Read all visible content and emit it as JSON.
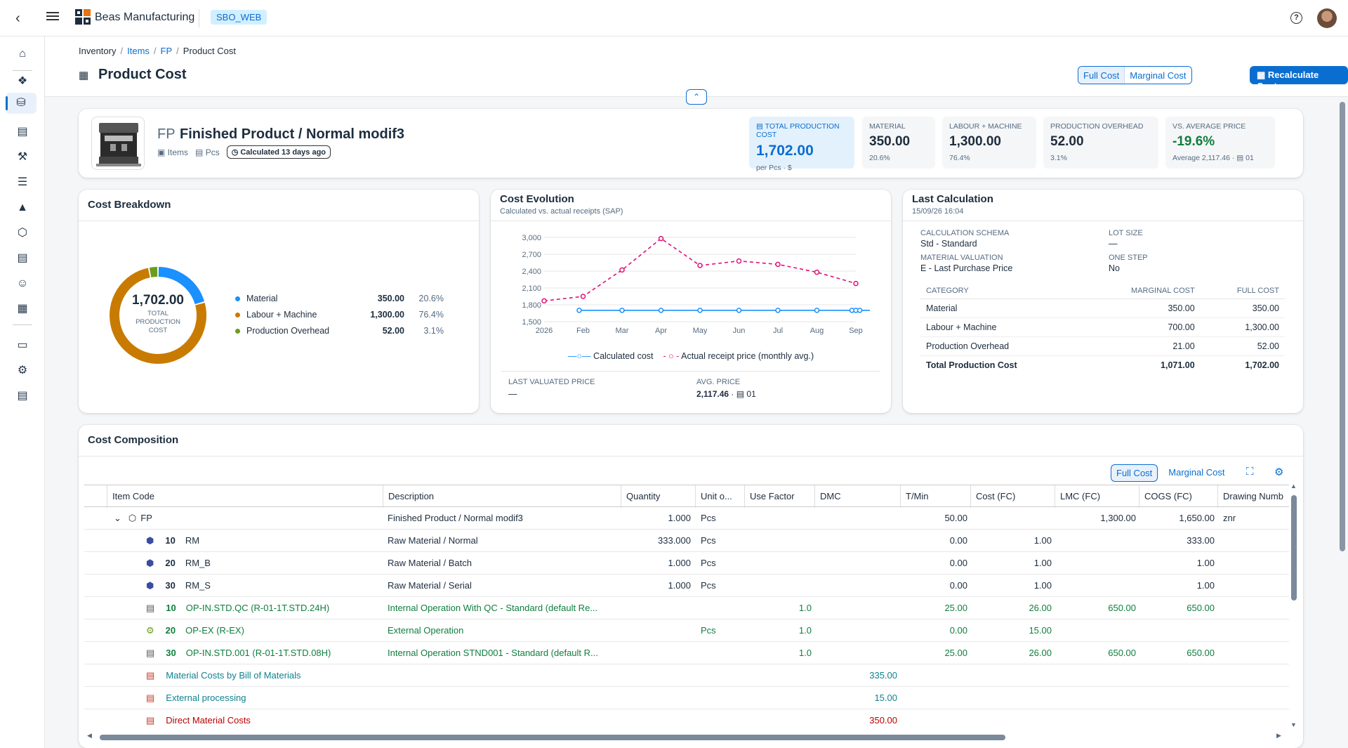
{
  "shell": {
    "company": "Beas Manufacturing",
    "system": "SBO_WEB",
    "help": "?"
  },
  "nav": [
    "home-icon",
    "items-icon",
    "cost-icon",
    "production-icon",
    "tools-icon",
    "tasks-icon",
    "warning-icon",
    "package-icon",
    "document-icon",
    "team-icon",
    "planning-icon",
    "devices-icon",
    "settings-icon",
    "reports-icon"
  ],
  "breadcrumb": {
    "c1": "Inventory",
    "c2": "Items",
    "c3": "FP",
    "c4": "Product Cost",
    "sep": "/"
  },
  "page": {
    "title": "Product Cost",
    "full_cost": "Full Cost",
    "marginal_cost": "Marginal Cost",
    "recalculate": "Recalculate Cost"
  },
  "product": {
    "code": "FP",
    "name": "Finished Product / Normal modif3",
    "group": "Items",
    "uom": "Pcs",
    "calc_badge": "Calculated 13 days ago"
  },
  "kpis": {
    "total": {
      "label": "Total Production Cost",
      "value": "1,702.00",
      "sub": "per Pcs · $"
    },
    "material": {
      "label": "Material",
      "value": "350.00",
      "sub": "20.6%"
    },
    "labour": {
      "label": "Labour + Machine",
      "value": "1,300.00",
      "sub": "76.4%"
    },
    "overhead": {
      "label": "Production Overhead",
      "value": "52.00",
      "sub": "3.1%"
    },
    "avg": {
      "label": "vs. Average Price",
      "value": "-19.6%",
      "sub": "Average 2,117.46 ·",
      "wh": "01"
    }
  },
  "breakdown": {
    "title": "Cost Breakdown",
    "center_value": "1,702.00",
    "center_l1": "TOTAL",
    "center_l2": "PRODUCTION",
    "center_l3": "COST",
    "items": [
      {
        "name": "Material",
        "value": "350.00",
        "pct": "20.6%",
        "color": "#1b90ff",
        "num": 350
      },
      {
        "name": "Labour + Machine",
        "value": "1,300.00",
        "pct": "76.4%",
        "color": "#c87b00",
        "num": 1300
      },
      {
        "name": "Production Overhead",
        "value": "52.00",
        "pct": "3.1%",
        "color": "#6b9c1c",
        "num": 52
      }
    ]
  },
  "evolution": {
    "title": "Cost Evolution",
    "subtitle": "Calculated vs. actual receipts (SAP)",
    "legend_calc": "Calculated cost",
    "legend_actual": "Actual receipt price (monthly avg.)",
    "last_valued_label": "LAST VALUATED PRICE",
    "last_valued_value": "—",
    "avg_label": "AVG. PRICE",
    "avg_value": "2,117.46",
    "avg_wh": "01"
  },
  "chart_data": {
    "type": "line",
    "x_labels": [
      "2026",
      "Feb",
      "Mar",
      "Apr",
      "May",
      "Jun",
      "Jul",
      "Aug",
      "Sep"
    ],
    "ylim": [
      1500,
      3000
    ],
    "y_ticks": [
      "3,000",
      "2,700",
      "2,400",
      "2,100",
      "1,800",
      "1,500"
    ],
    "series": [
      {
        "name": "Calculated cost",
        "color": "#1b90ff",
        "points": [
          [
            0.9,
            1702
          ],
          [
            2,
            1702
          ],
          [
            3,
            1702
          ],
          [
            4,
            1702
          ],
          [
            5,
            1702
          ],
          [
            6,
            1702
          ],
          [
            7,
            1702
          ],
          [
            7.9,
            1702
          ],
          [
            8,
            1702
          ],
          [
            8.1,
            1702
          ],
          [
            8.5,
            1702
          ]
        ]
      },
      {
        "name": "Actual receipt price (monthly avg.)",
        "color": "#df1278",
        "points": [
          [
            0,
            1870
          ],
          [
            1,
            1950
          ],
          [
            2,
            2420
          ],
          [
            3,
            2980
          ],
          [
            4,
            2500
          ],
          [
            5,
            2580
          ],
          [
            6,
            2520
          ],
          [
            7,
            2380
          ],
          [
            8,
            2180
          ]
        ]
      }
    ]
  },
  "lastcalc": {
    "title": "Last Calculation",
    "date": "15/09/26 16:04",
    "schema_label": "CALCULATION SCHEMA",
    "schema_value": "Std - Standard",
    "lot_label": "LOT SIZE",
    "lot_value": "—",
    "valuation_label": "MATERIAL VALUATION",
    "valuation_value": "E - Last Purchase Price",
    "onestep_label": "ONE STEP",
    "onestep_value": "No",
    "col_category": "CATEGORY",
    "col_marginal": "MARGINAL COST",
    "col_full": "FULL COST",
    "rows": [
      {
        "cat": "Material",
        "marginal": "350.00",
        "full": "350.00"
      },
      {
        "cat": "Labour + Machine",
        "marginal": "700.00",
        "full": "1,300.00"
      },
      {
        "cat": "Production Overhead",
        "marginal": "21.00",
        "full": "52.00"
      },
      {
        "cat": "Total Production Cost",
        "marginal": "1,071.00",
        "full": "1,702.00"
      }
    ]
  },
  "composition": {
    "title": "Cost Composition",
    "full_cost": "Full Cost",
    "marginal_cost": "Marginal Cost",
    "columns": [
      "Item Code",
      "Description",
      "Quantity",
      "Unit o...",
      "Use Factor",
      "DMC",
      "T/Min",
      "Cost (FC)",
      "LMC (FC)",
      "COGS (FC)",
      "Drawing Numb"
    ],
    "rows": [
      {
        "pos": "",
        "code": "FP",
        "desc": "Finished Product / Normal modif3",
        "qty": "1.000",
        "unit": "Pcs",
        "use": "",
        "dmc": "",
        "tmin": "50.00",
        "cost": "",
        "lmc": "1,300.00",
        "cogs": "1,650.00",
        "draw": "znr",
        "style": "root",
        "icon": "product-icon"
      },
      {
        "pos": "10",
        "code": "RM",
        "desc": "Raw Material / Normal",
        "qty": "333.000",
        "unit": "Pcs",
        "use": "",
        "dmc": "",
        "tmin": "0.00",
        "cost": "1.00",
        "lmc": "",
        "cogs": "333.00",
        "draw": "",
        "style": "mat",
        "icon": "material-icon"
      },
      {
        "pos": "20",
        "code": "RM_B",
        "desc": "Raw Material / Batch",
        "qty": "1.000",
        "unit": "Pcs",
        "use": "",
        "dmc": "",
        "tmin": "0.00",
        "cost": "1.00",
        "lmc": "",
        "cogs": "1.00",
        "draw": "",
        "style": "mat",
        "icon": "material-icon"
      },
      {
        "pos": "30",
        "code": "RM_S",
        "desc": "Raw Material / Serial",
        "qty": "1.000",
        "unit": "Pcs",
        "use": "",
        "dmc": "",
        "tmin": "0.00",
        "cost": "1.00",
        "lmc": "",
        "cogs": "1.00",
        "draw": "",
        "style": "mat",
        "icon": "material-icon"
      },
      {
        "pos": "10",
        "code": "OP-IN.STD.QC (R-01-1T.STD.24H)",
        "desc": "Internal Operation With QC - Standard (default Re...",
        "qty": "",
        "unit": "",
        "use": "1.0",
        "dmc": "",
        "tmin": "25.00",
        "cost": "26.00",
        "lmc": "650.00",
        "cogs": "650.00",
        "draw": "",
        "style": "op",
        "icon": "machine-icon"
      },
      {
        "pos": "20",
        "code": "OP-EX (R-EX)",
        "desc": "External Operation",
        "qty": "",
        "unit": "Pcs",
        "use": "1.0",
        "dmc": "",
        "tmin": "0.00",
        "cost": "15.00",
        "lmc": "",
        "cogs": "",
        "draw": "",
        "style": "op",
        "icon": "external-icon"
      },
      {
        "pos": "30",
        "code": "OP-IN.STD.001 (R-01-1T.STD.08H)",
        "desc": "Internal Operation STND001 - Standard (default R...",
        "qty": "",
        "unit": "",
        "use": "1.0",
        "dmc": "",
        "tmin": "25.00",
        "cost": "26.00",
        "lmc": "650.00",
        "cogs": "650.00",
        "draw": "",
        "style": "op",
        "icon": "machine-icon"
      },
      {
        "pos": "",
        "code": "Material Costs by Bill of Materials",
        "desc": "",
        "qty": "",
        "unit": "",
        "use": "",
        "dmc": "335.00",
        "tmin": "",
        "cost": "",
        "lmc": "",
        "cogs": "",
        "draw": "",
        "style": "sum-teal",
        "icon": "summary-icon"
      },
      {
        "pos": "",
        "code": "External processing",
        "desc": "",
        "qty": "",
        "unit": "",
        "use": "",
        "dmc": "15.00",
        "tmin": "",
        "cost": "",
        "lmc": "",
        "cogs": "",
        "draw": "",
        "style": "sum-teal",
        "icon": "summary-icon"
      },
      {
        "pos": "",
        "code": "Direct Material Costs",
        "desc": "",
        "qty": "",
        "unit": "",
        "use": "",
        "dmc": "350.00",
        "tmin": "",
        "cost": "",
        "lmc": "",
        "cogs": "",
        "draw": "",
        "style": "sum-red",
        "icon": "summary-icon"
      }
    ]
  }
}
